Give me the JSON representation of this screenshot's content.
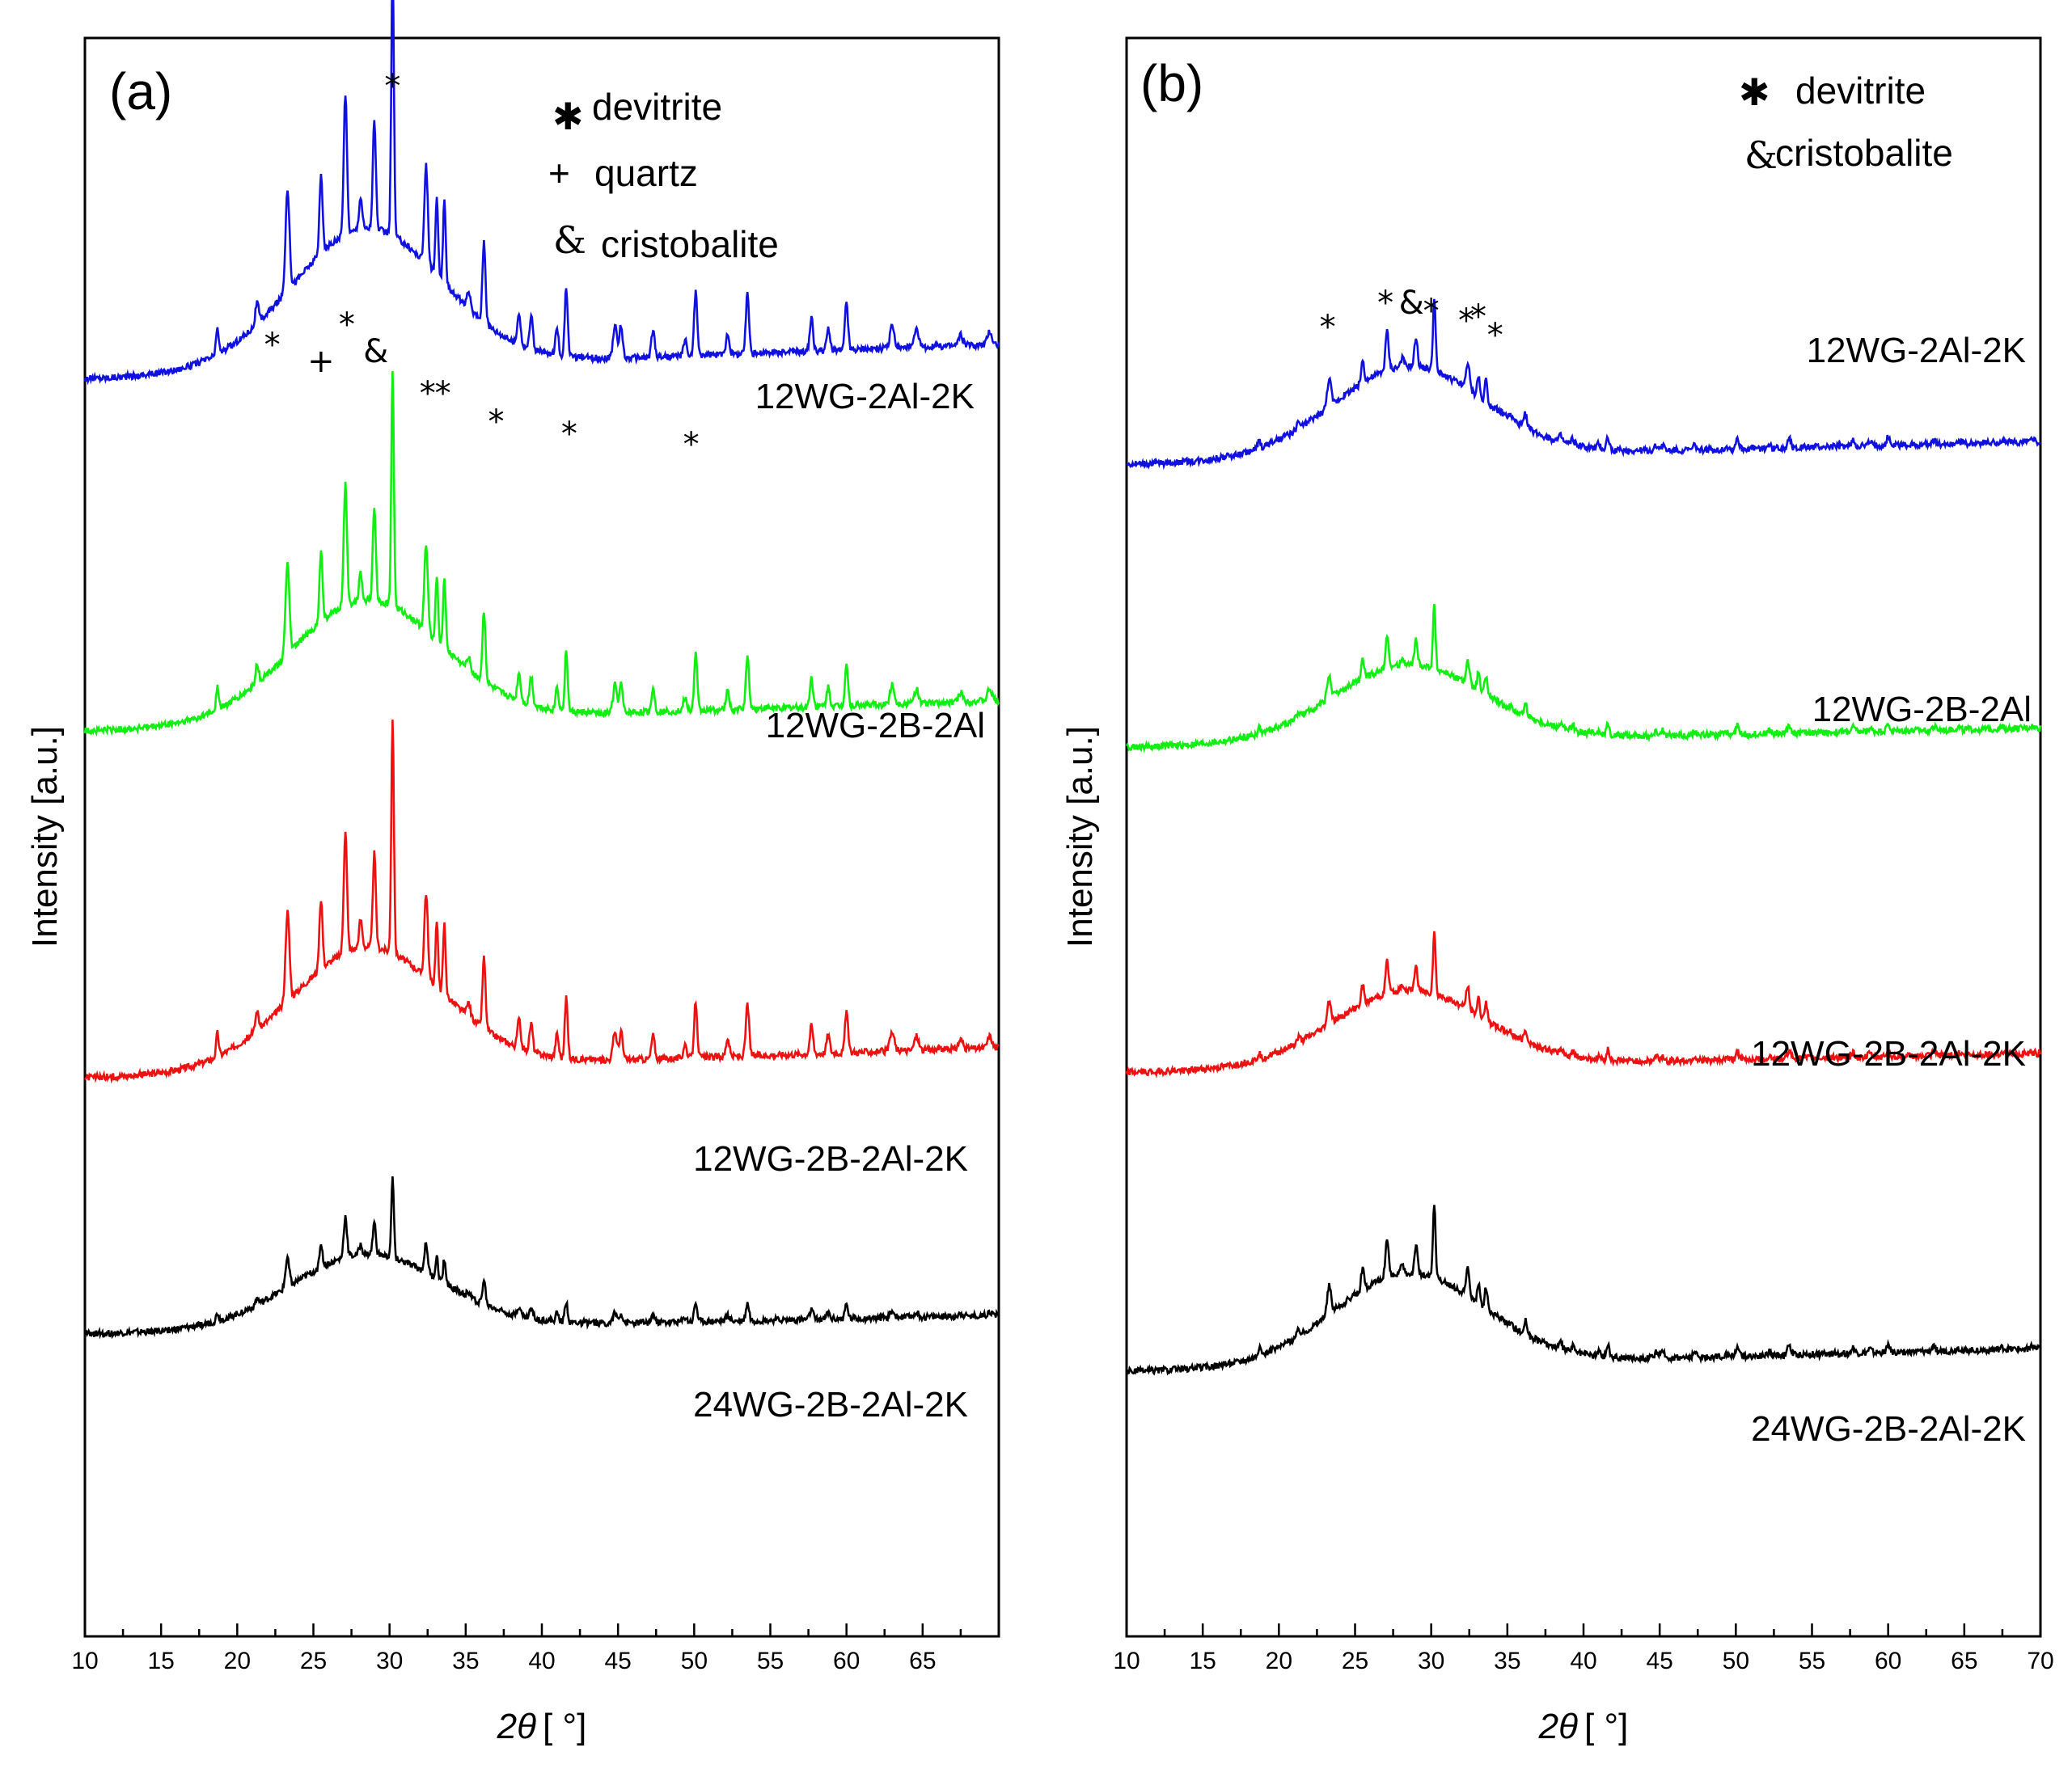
{
  "chart_data": [
    {
      "type": "line",
      "panel_label": "(a)",
      "xlabel_prefix": "2",
      "xlabel_theta": "θ",
      "xlabel_unit": "[ °]",
      "ylabel": "Intensity [a.u.]",
      "xlim": [
        10,
        70
      ],
      "xticks": [
        10,
        15,
        20,
        25,
        30,
        35,
        40,
        45,
        50,
        55,
        60,
        65
      ],
      "legend": [
        {
          "symbol": "✱",
          "label": "devitrite"
        },
        {
          "symbol": "+",
          "label": "quartz"
        },
        {
          "symbol": "&",
          "label": "cristobalite"
        }
      ],
      "series": [
        {
          "name": "12WG-2Al-2K",
          "color": "#1010e0",
          "base": 0.71,
          "scale": 1.0
        },
        {
          "name": "12WG-2B-2Al",
          "color": "#11ee11",
          "base": 1.37,
          "scale": 0.87
        },
        {
          "name": "12WG-2B-2Al-2K",
          "color": "#ee1111",
          "base": 2.02,
          "scale": 0.87
        },
        {
          "name": "24WG-2B-2Al-2K",
          "color": "#000000",
          "base": 2.5,
          "scale": 0.53
        }
      ],
      "phase_markers": [
        {
          "x": 22.3,
          "symbol": "*"
        },
        {
          "x": 25.5,
          "symbol": "+"
        },
        {
          "x": 27.2,
          "symbol": "*"
        },
        {
          "x": 29.1,
          "symbol": "&"
        },
        {
          "x": 30.2,
          "symbol": "*"
        },
        {
          "x": 32.5,
          "symbol": "*"
        },
        {
          "x": 33.5,
          "symbol": "*"
        },
        {
          "x": 37.0,
          "symbol": "*"
        },
        {
          "x": 41.8,
          "symbol": "*"
        },
        {
          "x": 49.8,
          "symbol": "*"
        }
      ]
    },
    {
      "type": "line",
      "panel_label": "(b)",
      "xlabel_prefix": "2",
      "xlabel_theta": "θ",
      "xlabel_unit": "[ °]",
      "ylabel": "Intensity [a.u.]",
      "xlim": [
        10,
        70
      ],
      "xticks": [
        10,
        15,
        20,
        25,
        30,
        35,
        40,
        45,
        50,
        55,
        60,
        65,
        70
      ],
      "legend": [
        {
          "symbol": "✱",
          "label": "devitrite"
        },
        {
          "symbol": "&",
          "label": "cristobalite"
        }
      ],
      "series": [
        {
          "name": "12WG-2Al-2K",
          "color": "#1010e0",
          "base": 0.87,
          "scale": 0.5
        },
        {
          "name": "12WG-2B-2Al",
          "color": "#11ee11",
          "base": 1.4,
          "scale": 0.42
        },
        {
          "name": "12WG-2B-2Al-2K",
          "color": "#ee1111",
          "base": 2.01,
          "scale": 0.42
        },
        {
          "name": "24WG-2B-2Al-2K",
          "color": "#000000",
          "base": 2.57,
          "scale": 0.5
        }
      ],
      "phase_markers": [
        {
          "x": 23.2,
          "symbol": "*"
        },
        {
          "x": 27.0,
          "symbol": "*"
        },
        {
          "x": 28.7,
          "symbol": "&"
        },
        {
          "x": 30.0,
          "symbol": "*"
        },
        {
          "x": 32.3,
          "symbol": "*"
        },
        {
          "x": 33.1,
          "symbol": "*"
        },
        {
          "x": 34.2,
          "symbol": "*"
        }
      ]
    }
  ]
}
